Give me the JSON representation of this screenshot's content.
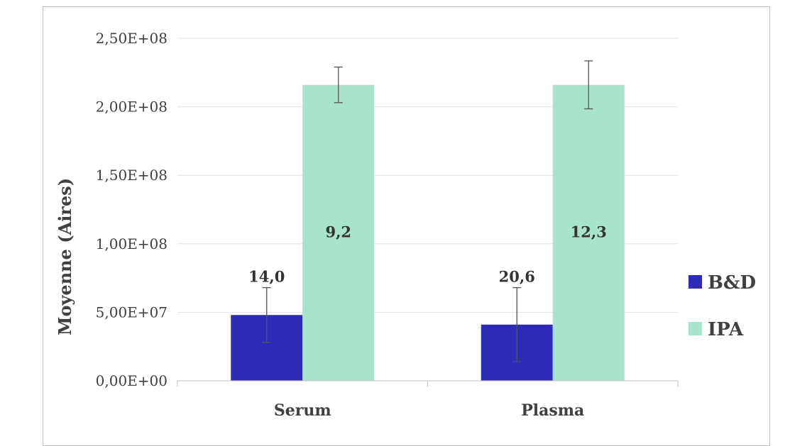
{
  "chart_data": {
    "type": "bar",
    "categories": [
      "Serum",
      "Plasma"
    ],
    "series": [
      {
        "name": "B&D",
        "color": "#2e2bb8",
        "values": [
          48000000,
          41000000
        ],
        "errors": [
          20000000,
          27000000
        ],
        "labels": [
          "14,0",
          "20,6"
        ]
      },
      {
        "name": "IPA",
        "color": "#a8e3cb",
        "values": [
          216000000,
          216000000
        ],
        "errors": [
          13000000,
          17500000
        ],
        "labels": [
          "9,2",
          "12,3"
        ]
      }
    ],
    "title": "",
    "xlabel": "",
    "ylabel": "Moyenne (Aires)",
    "ylim": [
      0,
      250000000
    ],
    "yticks": [
      "0,00E+00",
      "5,00E+07",
      "1,00E+08",
      "1,50E+08",
      "2,00E+08",
      "2,50E+08"
    ],
    "grid": true,
    "legend_position": "right"
  }
}
